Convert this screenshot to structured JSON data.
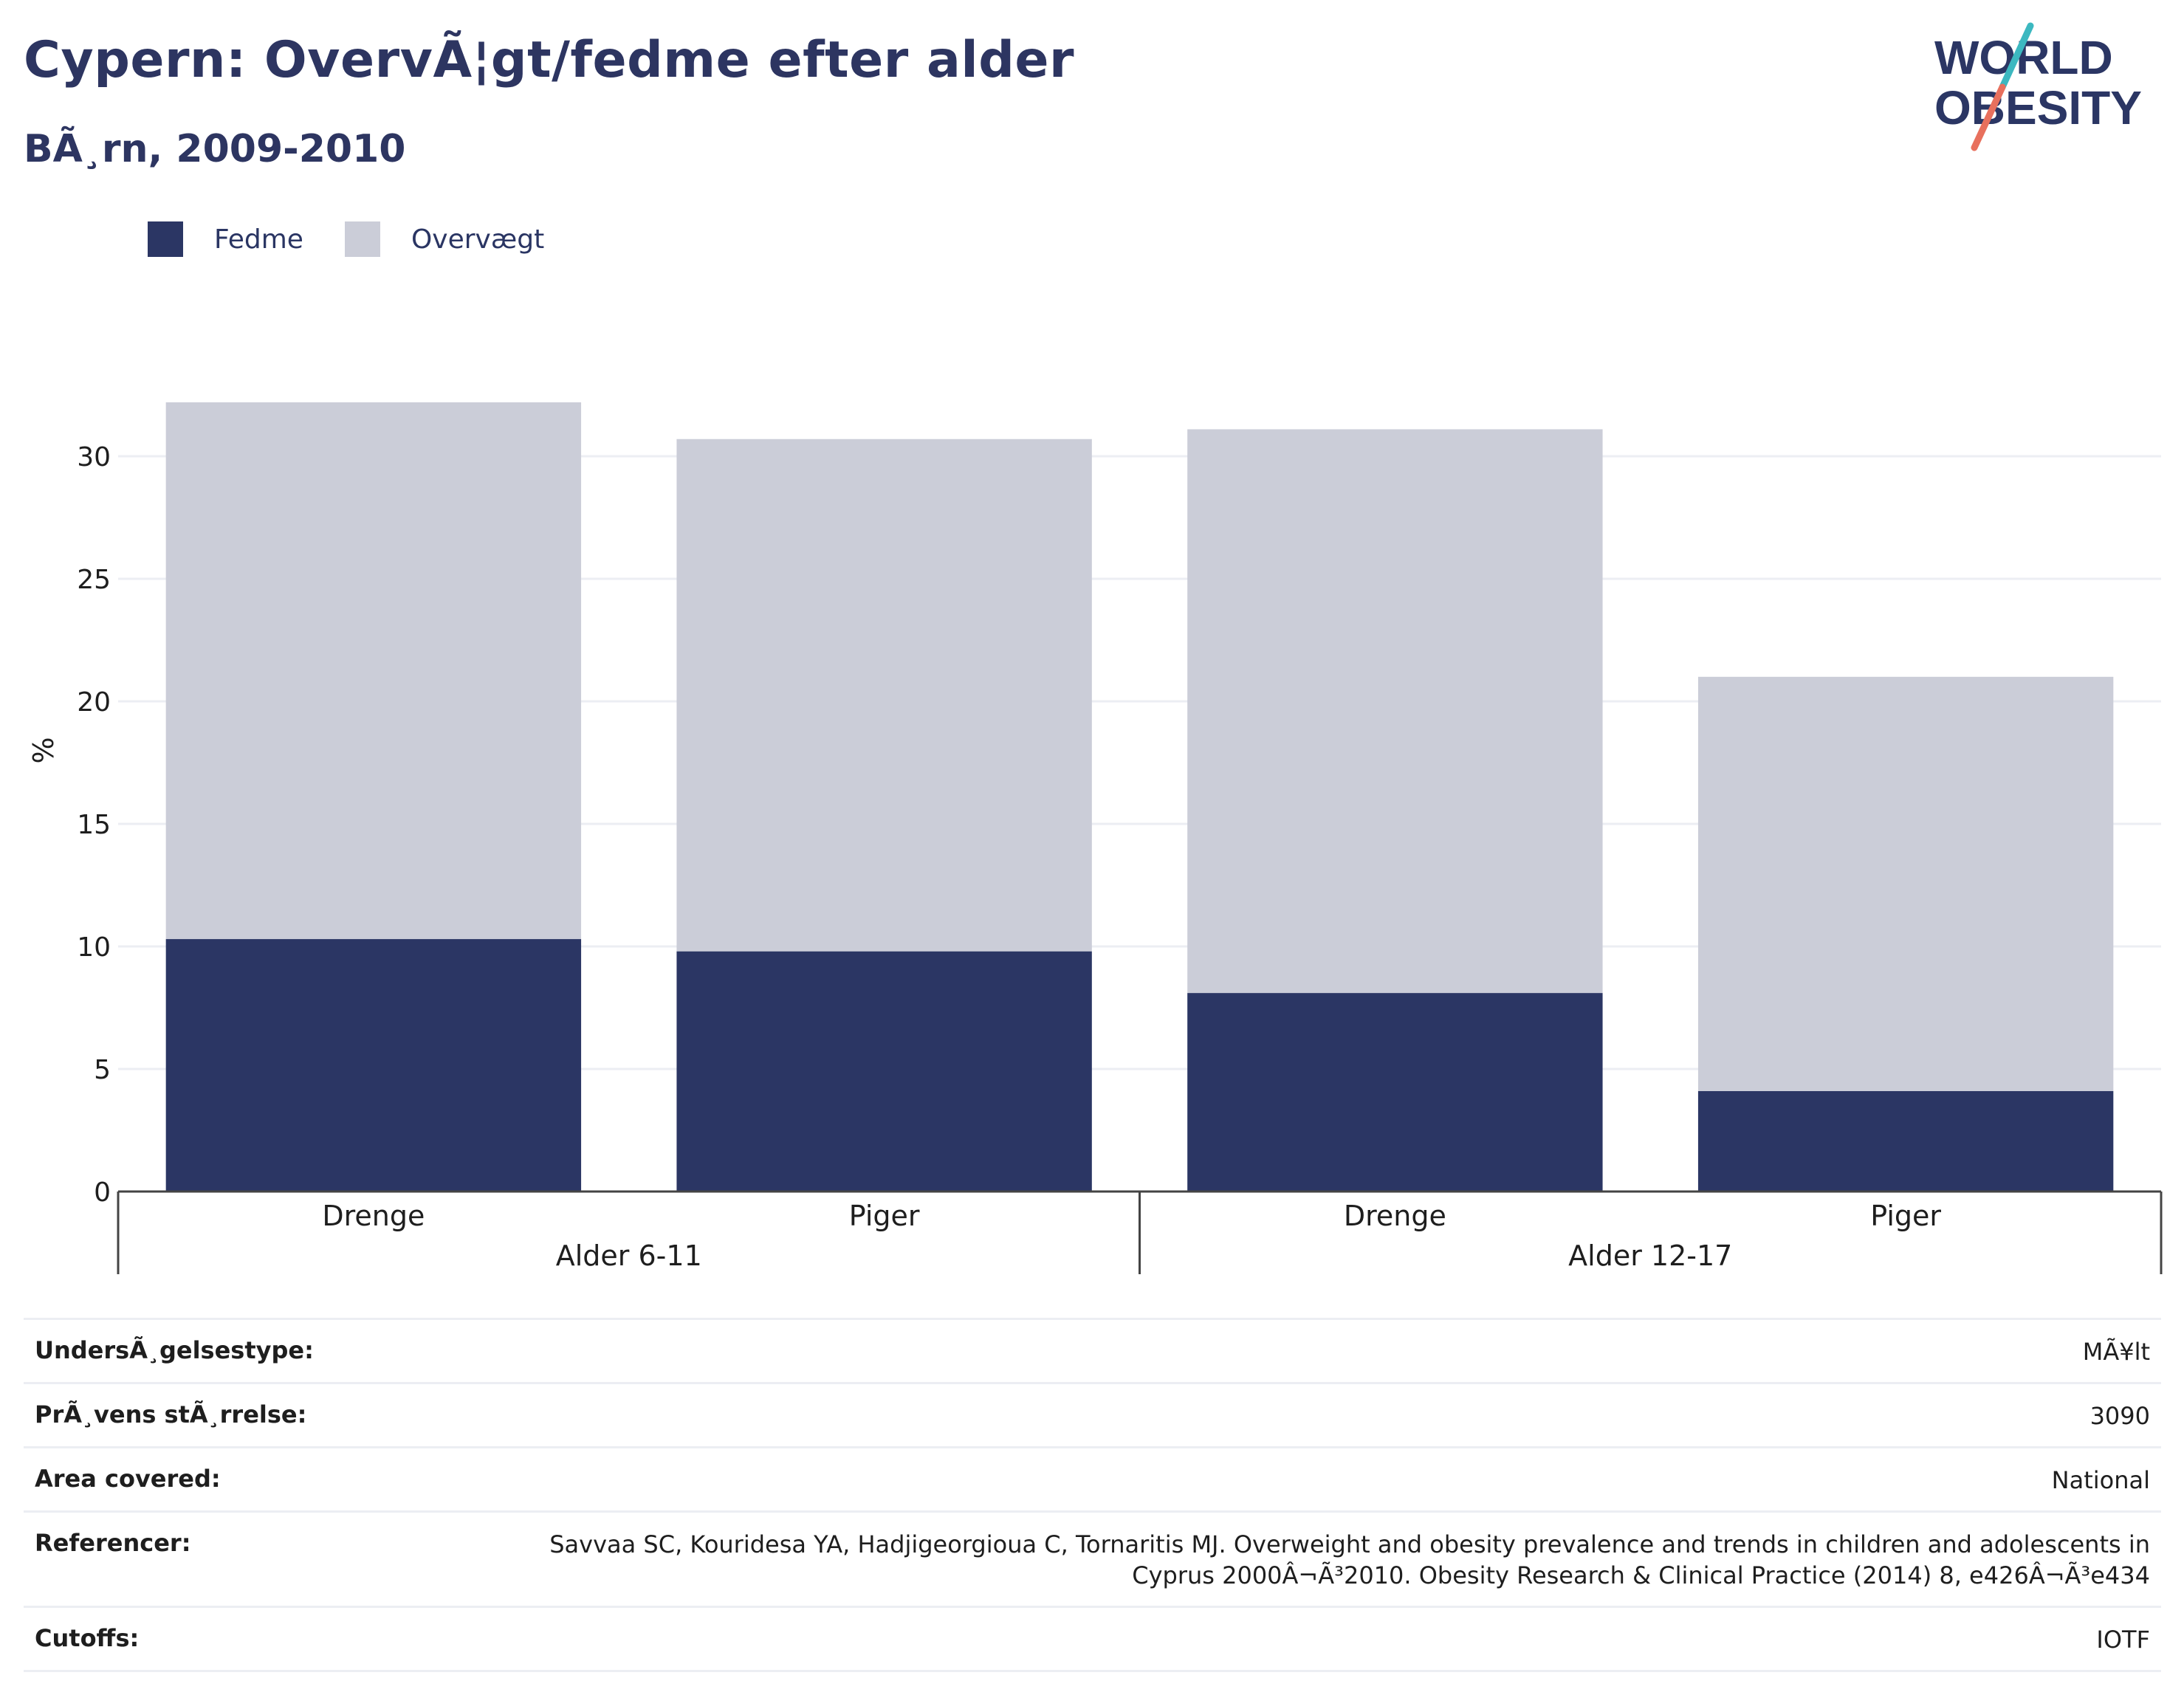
{
  "header": {
    "title": "Cypern: OvervÃ¦gt/fedme efter alder",
    "subtitle": "BÃ¸rn, 2009-2010"
  },
  "logo": {
    "line1": "WORLD",
    "line2": "OBESITY"
  },
  "legend": [
    {
      "label": "Fedme",
      "color": "#2b3664"
    },
    {
      "label": "Overvægt",
      "color": "#cbcdd8"
    }
  ],
  "chart_data": {
    "type": "bar",
    "stacked": true,
    "ylabel": "%",
    "ylim": [
      0,
      32
    ],
    "yticks": [
      0,
      5,
      10,
      15,
      20,
      25,
      30
    ],
    "grid": true,
    "groups": [
      {
        "label": "Alder 6-11",
        "categories": [
          "Drenge",
          "Piger"
        ]
      },
      {
        "label": "Alder 12-17",
        "categories": [
          "Drenge",
          "Piger"
        ]
      }
    ],
    "categories": [
      "Drenge",
      "Piger",
      "Drenge",
      "Piger"
    ],
    "series": [
      {
        "name": "Fedme",
        "color": "#2b3664",
        "values": [
          10.3,
          9.8,
          8.1,
          4.1
        ]
      },
      {
        "name": "Overvægt",
        "color": "#cbcdd8",
        "values": [
          21.9,
          20.9,
          23.0,
          16.9
        ]
      }
    ]
  },
  "info": [
    {
      "label": "UndersÃ¸gelsestype:",
      "value": "MÃ¥lt"
    },
    {
      "label": "PrÃ¸vens stÃ¸rrelse:",
      "value": "3090"
    },
    {
      "label": "Area covered:",
      "value": "National"
    },
    {
      "label": "Referencer:",
      "value": "Savvaa SC, Kouridesa YA, Hadjigeorgioua C, Tornaritis MJ. Overweight and obesity prevalence and trends in children and adolescents in Cyprus 2000Â¬Ã³2010. Obesity Research & Clinical Practice (2014) 8, e426Â¬Ã³e434"
    },
    {
      "label": "Cutoffs:",
      "value": "IOTF"
    }
  ]
}
